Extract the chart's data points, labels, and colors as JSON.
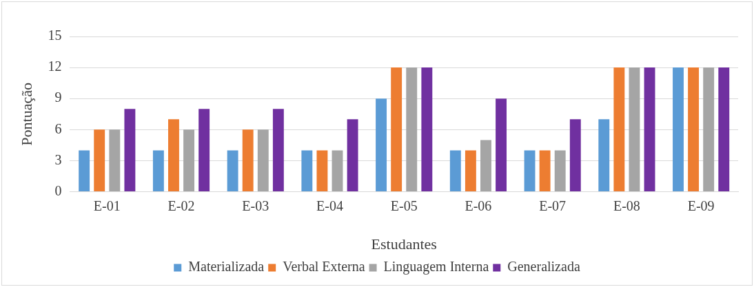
{
  "chart_data": {
    "type": "bar",
    "xlabel": "Estudantes",
    "ylabel": "Pontuação",
    "categories": [
      "E-01",
      "E-02",
      "E-03",
      "E-04",
      "E-05",
      "E-06",
      "E-07",
      "E-08",
      "E-09"
    ],
    "series": [
      {
        "name": "Materializada",
        "color": "#5b9bd5",
        "values": [
          4,
          4,
          4,
          4,
          9,
          4,
          4,
          7,
          12
        ]
      },
      {
        "name": "Verbal Externa",
        "color": "#ed7d31",
        "values": [
          6,
          7,
          6,
          4,
          12,
          4,
          4,
          12,
          12
        ]
      },
      {
        "name": "Linguagem Interna",
        "color": "#a5a5a5",
        "values": [
          6,
          6,
          6,
          4,
          12,
          5,
          4,
          12,
          12
        ]
      },
      {
        "name": "Generalizada",
        "color": "#7030a0",
        "values": [
          8,
          8,
          8,
          7,
          12,
          9,
          7,
          12,
          12
        ]
      }
    ],
    "ylim": [
      0,
      15
    ],
    "yticks": [
      0,
      3,
      6,
      9,
      12,
      15
    ],
    "grid": "y",
    "legend": "bottom"
  }
}
